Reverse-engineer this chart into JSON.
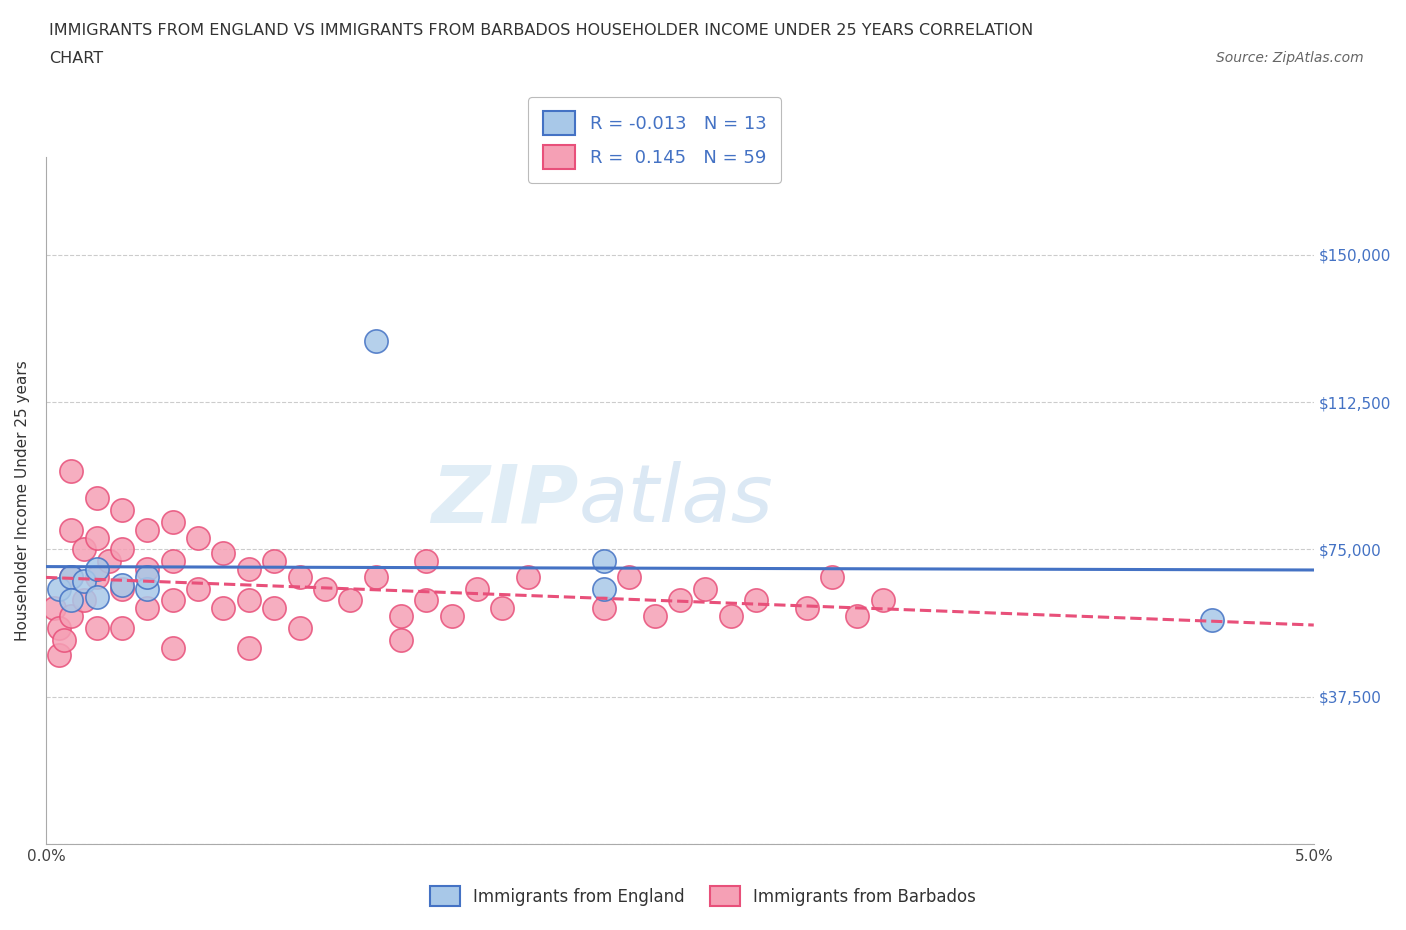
{
  "title_line1": "IMMIGRANTS FROM ENGLAND VS IMMIGRANTS FROM BARBADOS HOUSEHOLDER INCOME UNDER 25 YEARS CORRELATION",
  "title_line2": "CHART",
  "source_text": "Source: ZipAtlas.com",
  "ylabel": "Householder Income Under 25 years",
  "xlim": [
    0.0,
    0.05
  ],
  "ylim": [
    0,
    175000
  ],
  "yticks": [
    0,
    37500,
    75000,
    112500,
    150000
  ],
  "ytick_labels": [
    "",
    "$37,500",
    "$75,000",
    "$112,500",
    "$150,000"
  ],
  "xticks": [
    0.0,
    0.01,
    0.02,
    0.03,
    0.04,
    0.05
  ],
  "xtick_labels": [
    "0.0%",
    "",
    "",
    "",
    "",
    "5.0%"
  ],
  "england_color": "#a8c8e8",
  "barbados_color": "#f5a0b5",
  "england_line_color": "#4472c4",
  "barbados_line_color": "#e8507a",
  "england_R": -0.013,
  "england_N": 13,
  "barbados_R": 0.145,
  "barbados_N": 59,
  "england_x": [
    0.0005,
    0.001,
    0.001,
    0.0015,
    0.002,
    0.002,
    0.003,
    0.004,
    0.004,
    0.013,
    0.022,
    0.022,
    0.046
  ],
  "england_y": [
    65000,
    68000,
    62000,
    67000,
    70000,
    63000,
    66000,
    65000,
    68000,
    128000,
    72000,
    65000,
    57000
  ],
  "barbados_x": [
    0.0003,
    0.0005,
    0.0005,
    0.0007,
    0.001,
    0.001,
    0.001,
    0.001,
    0.0015,
    0.0015,
    0.002,
    0.002,
    0.002,
    0.002,
    0.0025,
    0.003,
    0.003,
    0.003,
    0.003,
    0.004,
    0.004,
    0.004,
    0.005,
    0.005,
    0.005,
    0.005,
    0.006,
    0.006,
    0.007,
    0.007,
    0.008,
    0.008,
    0.008,
    0.009,
    0.009,
    0.01,
    0.01,
    0.011,
    0.012,
    0.013,
    0.014,
    0.014,
    0.015,
    0.015,
    0.016,
    0.017,
    0.018,
    0.019,
    0.022,
    0.023,
    0.024,
    0.025,
    0.026,
    0.027,
    0.028,
    0.03,
    0.031,
    0.032,
    0.033
  ],
  "barbados_y": [
    60000,
    55000,
    48000,
    52000,
    95000,
    80000,
    68000,
    58000,
    75000,
    62000,
    88000,
    78000,
    68000,
    55000,
    72000,
    85000,
    75000,
    65000,
    55000,
    80000,
    70000,
    60000,
    82000,
    72000,
    62000,
    50000,
    78000,
    65000,
    74000,
    60000,
    70000,
    62000,
    50000,
    72000,
    60000,
    68000,
    55000,
    65000,
    62000,
    68000,
    58000,
    52000,
    72000,
    62000,
    58000,
    65000,
    60000,
    68000,
    60000,
    68000,
    58000,
    62000,
    65000,
    58000,
    62000,
    60000,
    68000,
    58000,
    62000
  ],
  "watermark_text": "ZIP",
  "watermark_text2": "atlas",
  "background_color": "#ffffff",
  "grid_color": "#cccccc"
}
